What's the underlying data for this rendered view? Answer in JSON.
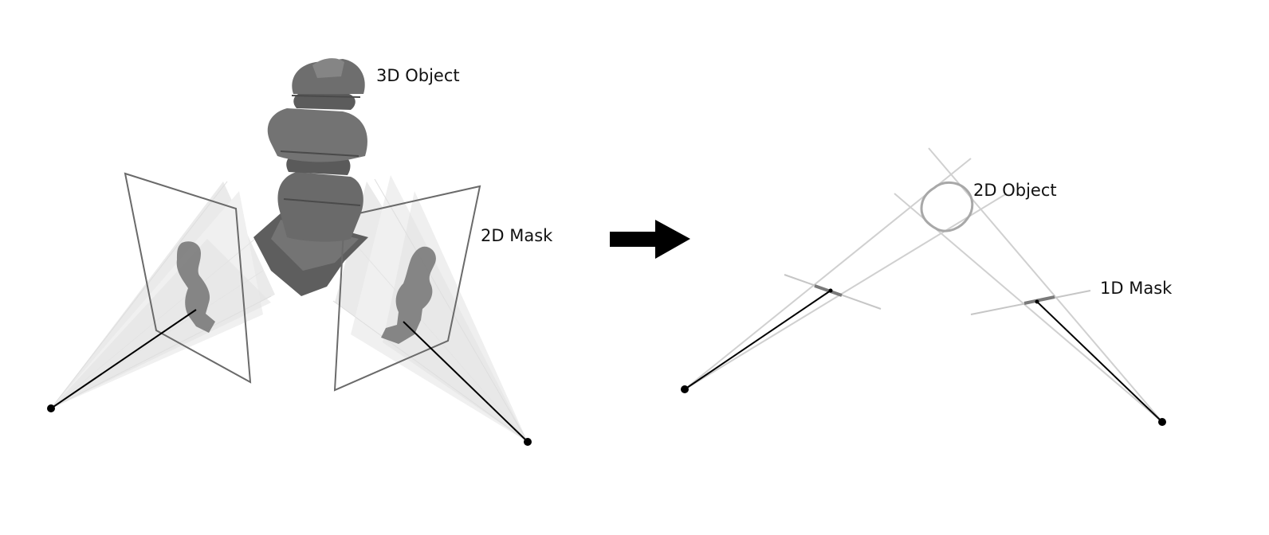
{
  "labels": {
    "object_3d": "3D Object",
    "mask_2d": "2D Mask",
    "object_2d": "2D Object",
    "mask_1d": "1D Mask"
  },
  "colors": {
    "object_fill": "#6e6e6e",
    "object_shadow": "#4a4a4a",
    "cone_fill": "#d6d6d6",
    "plane_stroke": "#6a6a6a",
    "ray_light": "#c8c8c8",
    "ray_dark": "#000000",
    "mask_segment": "#7a7a7a",
    "arrow": "#000000",
    "text": "#111111"
  },
  "icons": {
    "transition_arrow": "right-arrow-icon"
  }
}
